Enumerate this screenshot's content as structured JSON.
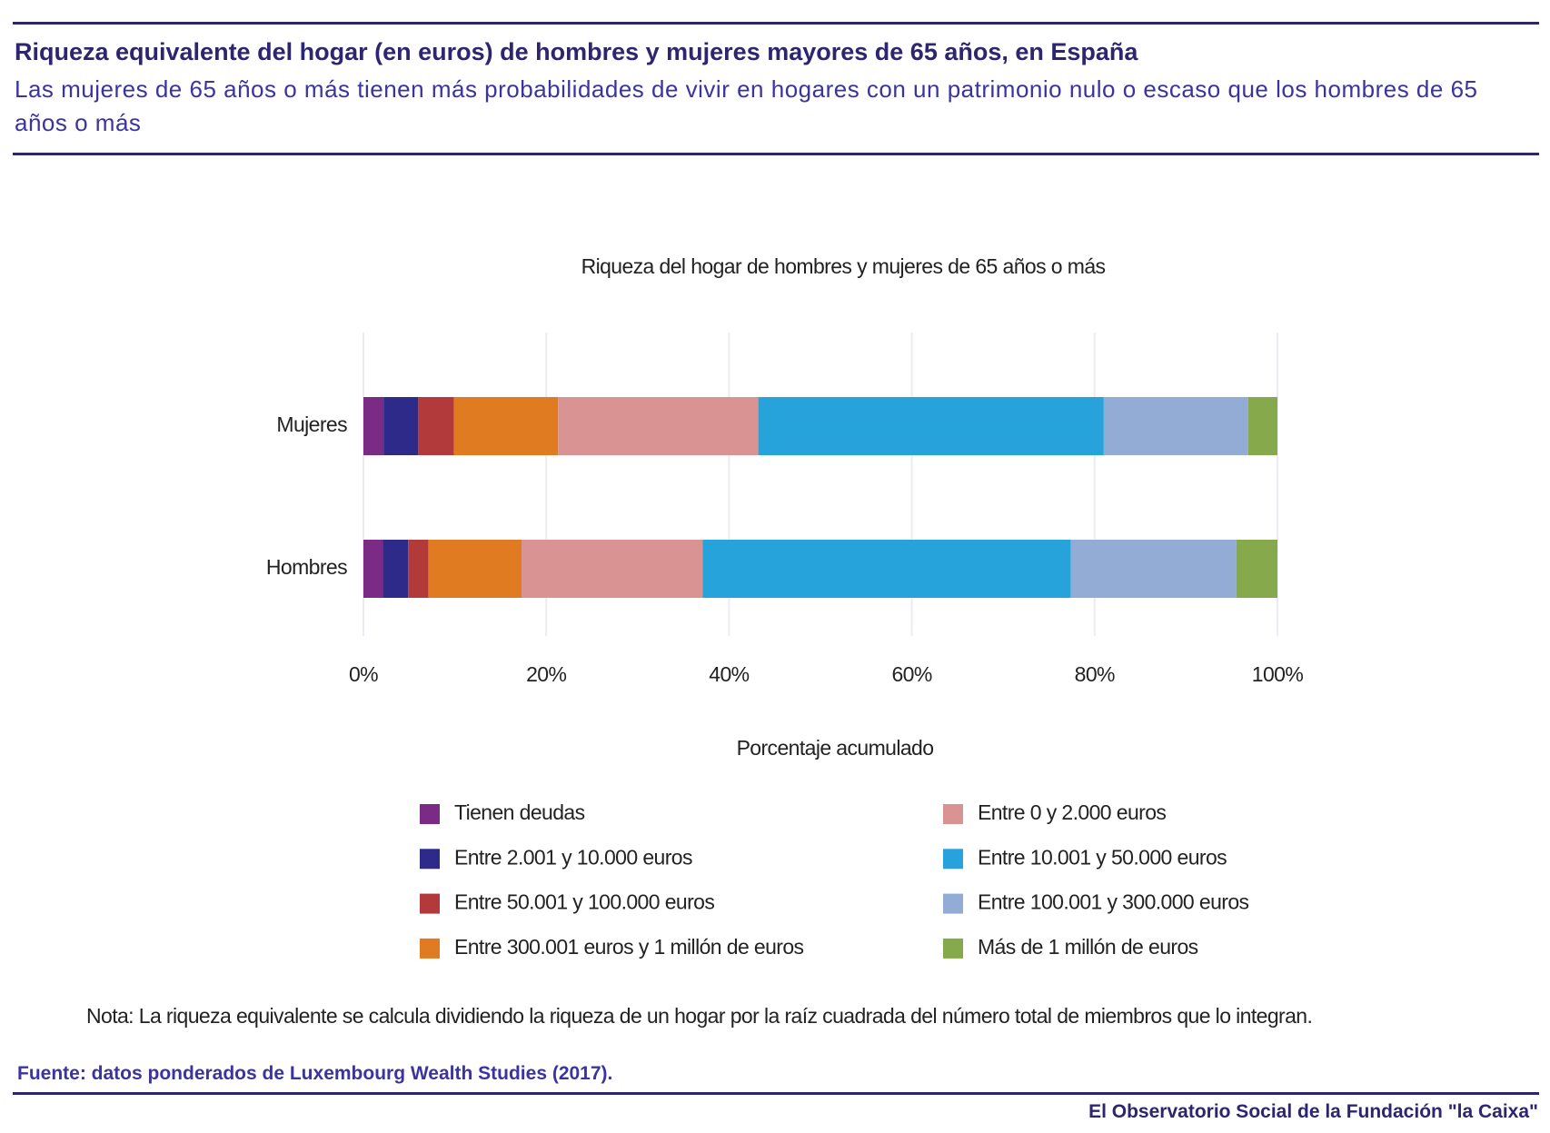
{
  "header": {
    "title": "Riqueza equivalente del hogar (en euros) de hombres y mujeres mayores de 65 años, en España",
    "subtitle": "Las mujeres de 65 años o más tienen más probabilidades de vivir en hogares con un patrimonio nulo o escaso que los hombres de 65 años o más"
  },
  "chart_data": {
    "type": "stacked-bar-horizontal",
    "title": "Riqueza del hogar de hombres y mujeres de 65 años o más",
    "x_label": "Porcentaje acumulado",
    "categories": [
      "Mujeres",
      "Hombres"
    ],
    "series": [
      {
        "name": "Tienen deudas",
        "color": "#7b2a86",
        "values": [
          2.2,
          2.1
        ]
      },
      {
        "name": "Entre 2.001 y 10.000 euros",
        "color": "#2e2a8a",
        "values": [
          3.8,
          2.8
        ]
      },
      {
        "name": "Entre 50.001 y 100.000 euros",
        "color": "#b33a3a",
        "values": [
          3.9,
          2.2
        ]
      },
      {
        "name": "Entre 300.001 euros y 1 millón de euros",
        "color": "#e07b22",
        "values": [
          11.4,
          10.2
        ]
      },
      {
        "name": "Entre 0 y 2.000 euros",
        "color": "#d99393",
        "values": [
          21.9,
          19.8
        ]
      },
      {
        "name": "Entre 10.001 y 50.000 euros",
        "color": "#27a3dc",
        "values": [
          37.8,
          40.3
        ]
      },
      {
        "name": "Entre 100.001 y 300.000 euros",
        "color": "#93acd6",
        "values": [
          15.8,
          18.1
        ]
      },
      {
        "name": "Más de 1 millón de euros",
        "color": "#86a94b",
        "values": [
          3.2,
          4.5
        ]
      }
    ],
    "xlim": [
      0,
      100
    ],
    "xticks": [
      {
        "value": 0,
        "label": "0%"
      },
      {
        "value": 20,
        "label": "20%"
      },
      {
        "value": 40,
        "label": "40%"
      },
      {
        "value": 60,
        "label": "60%"
      },
      {
        "value": 80,
        "label": "80%"
      },
      {
        "value": 100,
        "label": "100%"
      }
    ],
    "grid": true
  },
  "note": "Nota: La riqueza equivalente se calcula dividiendo la riqueza de un hogar por la raíz cuadrada del número total de miembros que lo integran.",
  "source": "Fuente:  datos ponderados de Luxembourg Wealth Studies (2017).",
  "footer": "El Observatorio Social de la Fundación \"la Caixa\""
}
